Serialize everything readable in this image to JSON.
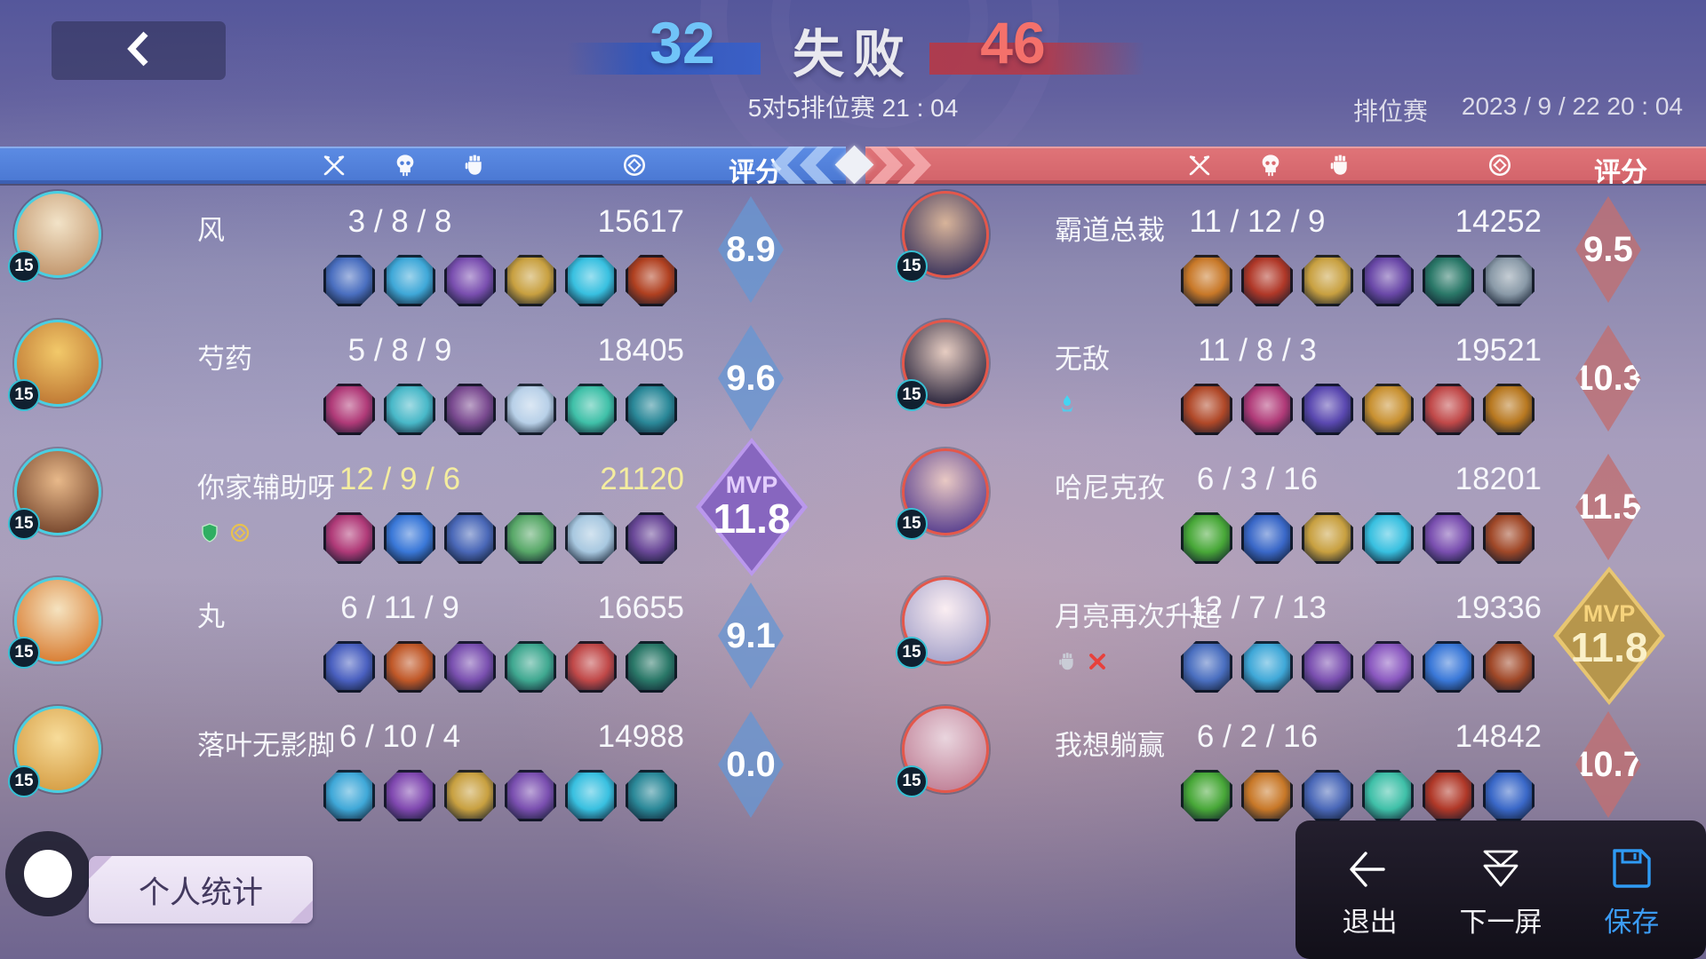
{
  "header": {
    "score_left": "32",
    "result": "失败",
    "score_right": "46",
    "subtitle": "5对5排位赛 21 : 04",
    "mode": "排位赛",
    "datetime": "2023 / 9 / 22 20 : 04"
  },
  "table": {
    "score_label": "评分",
    "columns": [
      {
        "icon": "crossed-swords-icon",
        "meaning": "kills"
      },
      {
        "icon": "skull-icon",
        "meaning": "deaths"
      },
      {
        "icon": "fist-icon",
        "meaning": "assists"
      },
      {
        "icon": "coin-icon",
        "meaning": "gold"
      }
    ]
  },
  "mvp_label": "MVP",
  "colors": {
    "blue_team_bar": "#4d7dd9",
    "red_team_bar": "#d9696d",
    "score_left_blue": "#70c4f8",
    "score_right_red": "#f4716b",
    "highlight_yellow": "#f4ed9f",
    "save_blue": "#3b9cf5",
    "mvp_purple": "#8f6cc4",
    "mvp_gold": "#d9b05e"
  },
  "teams": {
    "left": {
      "ring": "#49cfe2",
      "players": [
        {
          "name": "风",
          "kda": "3 / 8 / 8",
          "gold": "15617",
          "score": "8.9",
          "level": "15",
          "mvp": false,
          "highlight": false,
          "badges": [],
          "avatar": [
            "#f2e3c8",
            "#c3986f"
          ],
          "items": [
            "#4a6fc0",
            "#3fa8d8",
            "#7a4fb0",
            "#c8a040",
            "#38c0e0",
            "#b04020"
          ]
        },
        {
          "name": "芍药",
          "kda": "5 / 8 / 9",
          "gold": "18405",
          "score": "9.6",
          "level": "15",
          "mvp": false,
          "highlight": false,
          "badges": [],
          "avatar": [
            "#f2c96a",
            "#c07a35"
          ],
          "items": [
            "#b03a78",
            "#48b8c8",
            "#7a4a90",
            "#b8d0e8",
            "#3fc0a8",
            "#2a8898"
          ]
        },
        {
          "name": "你家辅助呀",
          "kda": "12 / 9 / 6",
          "gold": "21120",
          "score": "11.8",
          "level": "15",
          "mvp": true,
          "mvp_style": "purple",
          "highlight": true,
          "badges": [
            "shield",
            "coin"
          ],
          "avatar": [
            "#e8b98a",
            "#7a4a30"
          ],
          "items": [
            "#b03a78",
            "#3a78d8",
            "#4a68b8",
            "#58a868",
            "#a8c8e0",
            "#6a4898"
          ]
        },
        {
          "name": "丸",
          "kda": "6 / 11 / 9",
          "gold": "16655",
          "score": "9.1",
          "level": "15",
          "mvp": false,
          "highlight": false,
          "badges": [],
          "avatar": [
            "#f5e3c0",
            "#d97f35"
          ],
          "items": [
            "#4a60c0",
            "#c05828",
            "#7a50b0",
            "#3fa890",
            "#c04848",
            "#2a7868"
          ]
        },
        {
          "name": "落叶无影脚",
          "kda": "6 / 10 / 4",
          "gold": "14988",
          "score": "0.0",
          "level": "15",
          "mvp": false,
          "highlight": false,
          "badges": [],
          "avatar": [
            "#f7dc9a",
            "#d7a047"
          ],
          "items": [
            "#3fa8d8",
            "#8048b0",
            "#c8a040",
            "#7a4fb0",
            "#38c0e0",
            "#2a8898"
          ]
        }
      ]
    },
    "right": {
      "ring": "#e4574a",
      "players": [
        {
          "name": "霸道总裁",
          "kda": "11 / 12 / 9",
          "gold": "14252",
          "score": "9.5",
          "level": "15",
          "mvp": false,
          "highlight": false,
          "badges": [],
          "avatar": [
            "#d8b49a",
            "#41395f"
          ],
          "items": [
            "#c87828",
            "#b03828",
            "#c8a040",
            "#6a48a8",
            "#2a7868",
            "#8a9aa8"
          ]
        },
        {
          "name": "无敌",
          "kda": "11 / 8 / 3",
          "gold": "19521",
          "score": "10.3",
          "level": "15",
          "mvp": false,
          "highlight": false,
          "badges": [
            "emblem"
          ],
          "avatar": [
            "#e7cdc2",
            "#2e2940"
          ],
          "items": [
            "#b04828",
            "#b03a78",
            "#5a48b0",
            "#c89030",
            "#c04848",
            "#b87820"
          ]
        },
        {
          "name": "哈尼克孜",
          "kda": "6 / 3 / 16",
          "gold": "18201",
          "score": "11.5",
          "level": "15",
          "mvp": false,
          "highlight": false,
          "badges": [],
          "avatar": [
            "#e9c9c4",
            "#5c4390"
          ],
          "items": [
            "#48a838",
            "#3a68c8",
            "#c8a040",
            "#38c0e0",
            "#7a4fb0",
            "#a04828"
          ]
        },
        {
          "name": "月亮再次升起",
          "kda": "12 / 7 / 13",
          "gold": "19336",
          "score": "11.8",
          "level": "15",
          "mvp": true,
          "mvp_style": "gold",
          "highlight": false,
          "badges": [
            "fist",
            "x"
          ],
          "avatar": [
            "#fbeef2",
            "#a9a6cc"
          ],
          "items": [
            "#4a6fc0",
            "#3fa8d8",
            "#7a4fb0",
            "#8a58c0",
            "#3a78d8",
            "#a04828"
          ]
        },
        {
          "name": "我想躺赢",
          "kda": "6 / 2 / 16",
          "gold": "14842",
          "score": "10.7",
          "level": "15",
          "mvp": false,
          "highlight": false,
          "badges": [],
          "avatar": [
            "#e9d5de",
            "#c2849a"
          ],
          "items": [
            "#48a838",
            "#c87828",
            "#4a68b8",
            "#3fc0a8",
            "#b03828",
            "#3a68c8"
          ]
        }
      ]
    }
  },
  "footer": {
    "personal_stats": "个人统计",
    "exit": "退出",
    "next_screen": "下一屏",
    "save": "保存"
  }
}
